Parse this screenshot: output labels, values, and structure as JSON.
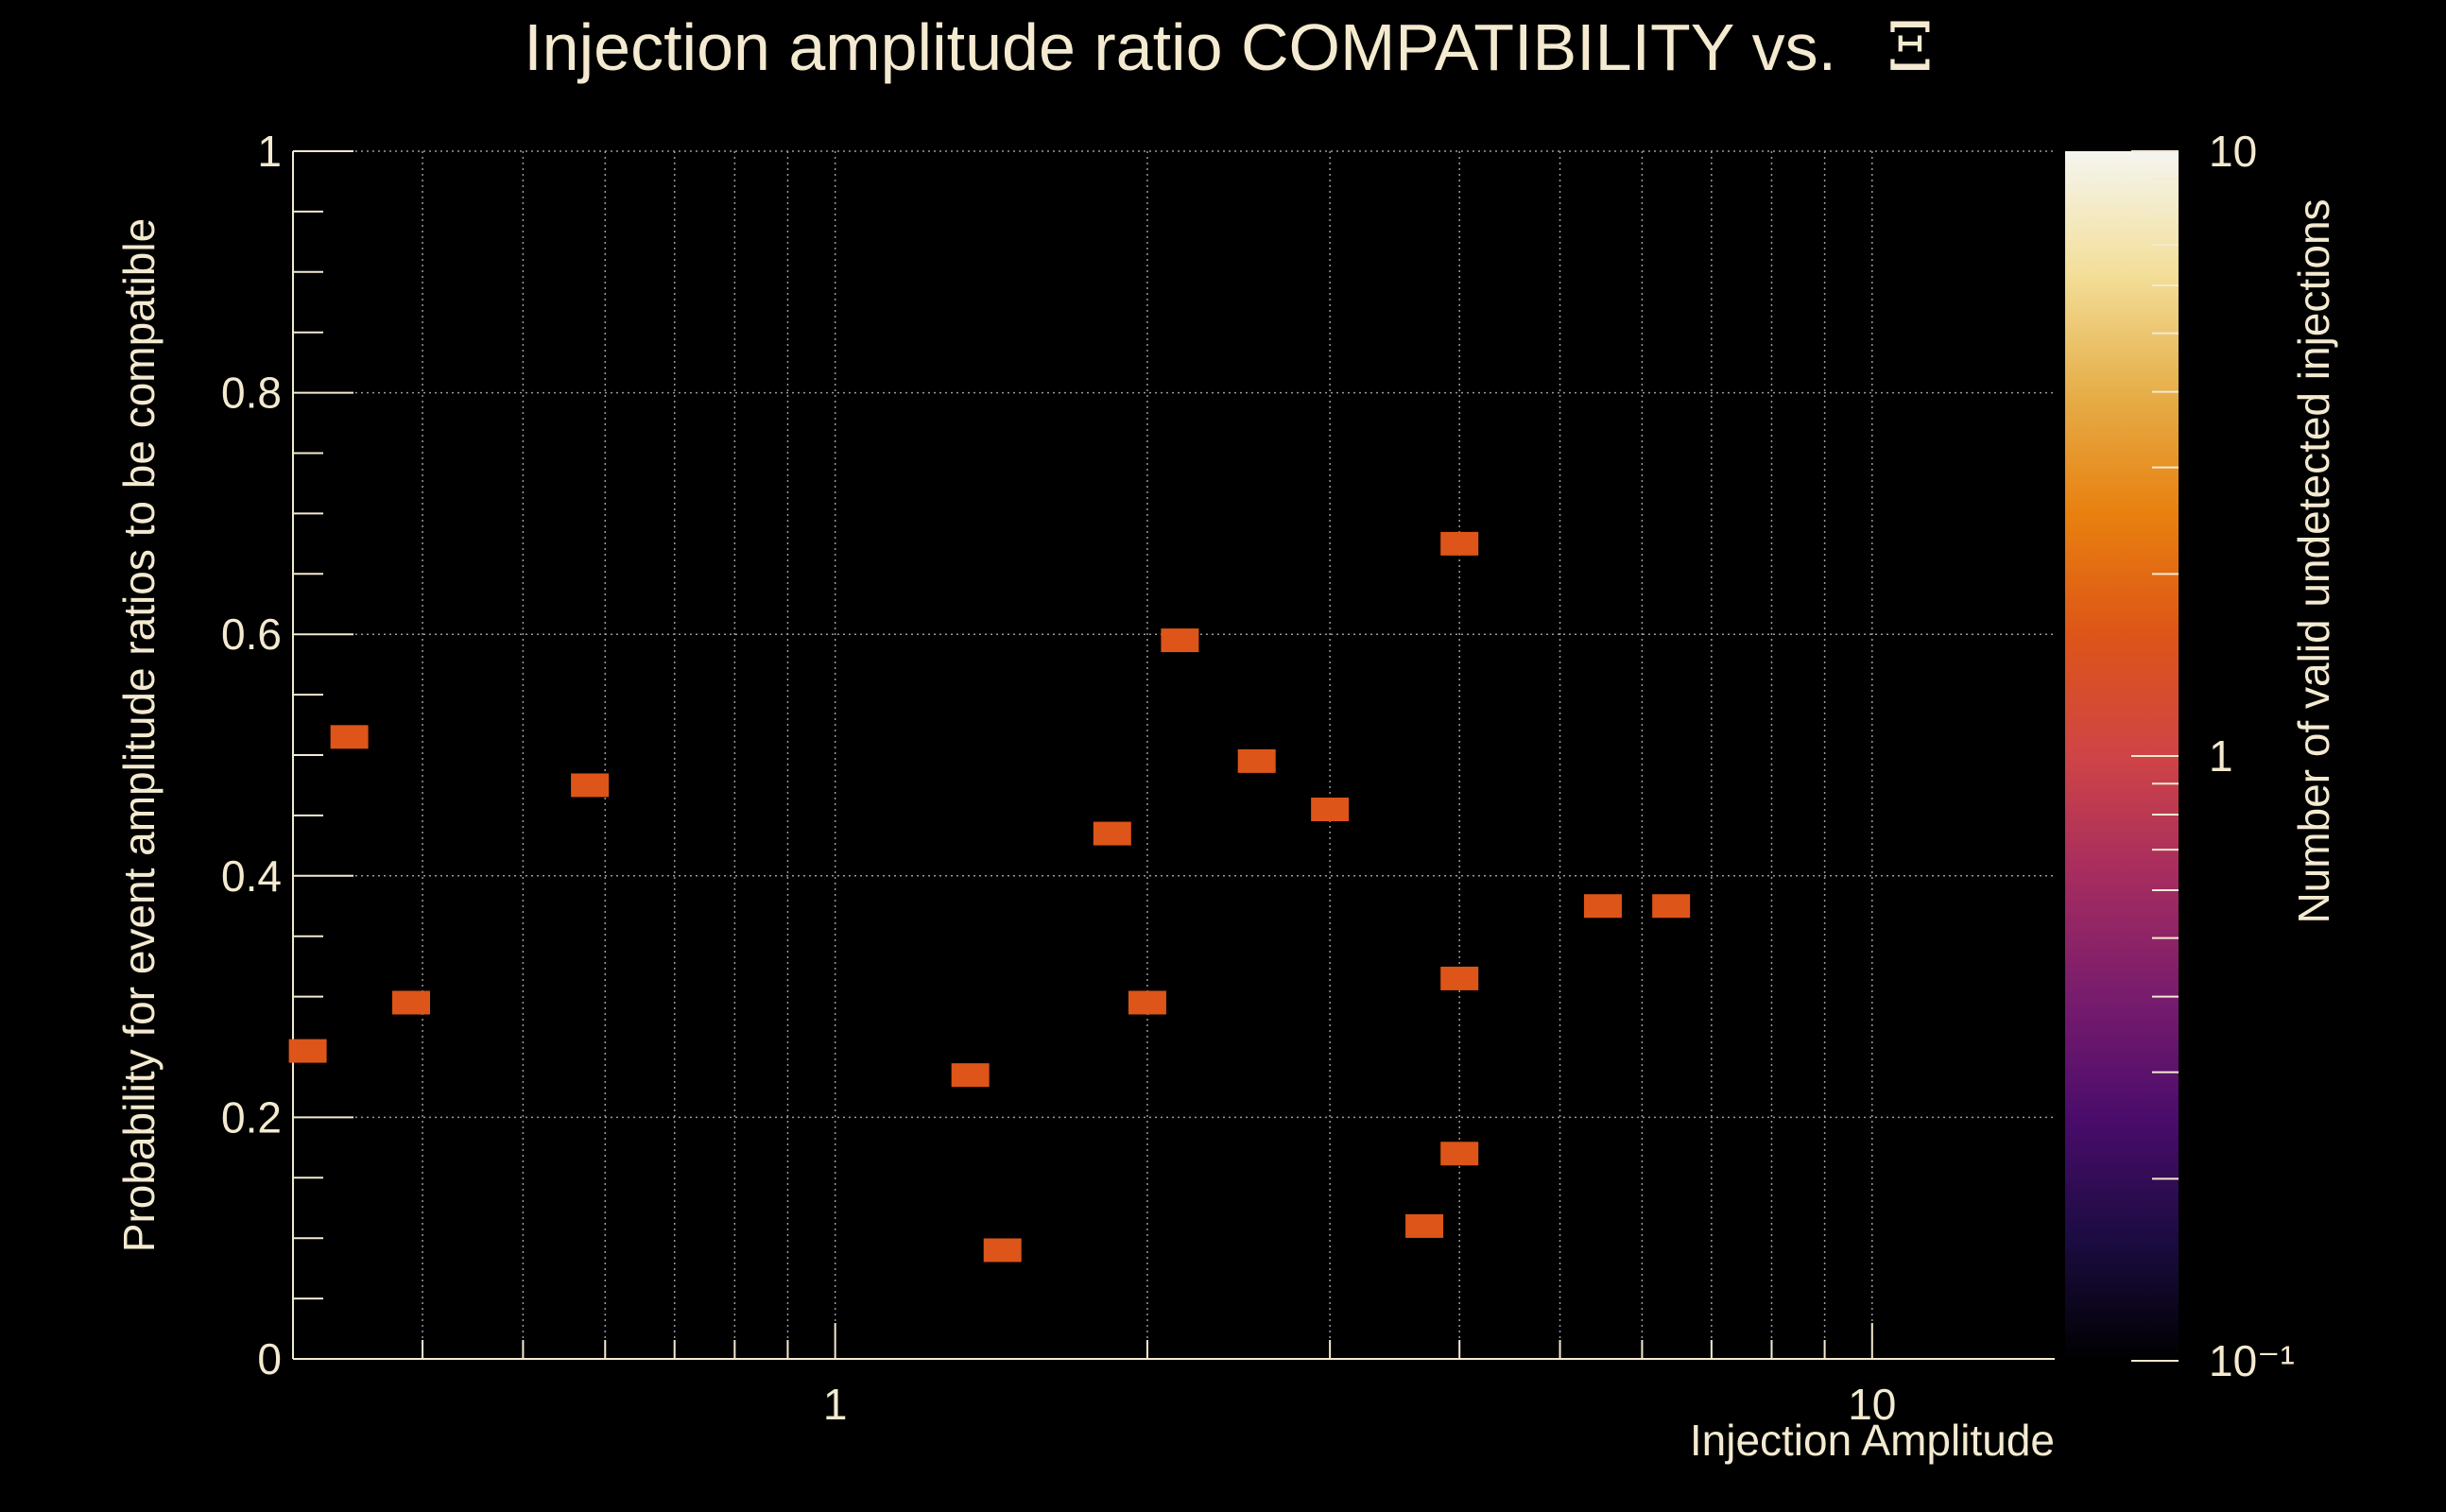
{
  "chart_data": {
    "type": "heatmap",
    "title": "Injection amplitude ratio COMPATIBILITY vs.",
    "title_symbol": "Ξ",
    "xlabel": "Injection Amplitude",
    "ylabel": "Probability for event amplitude ratios to be compatible",
    "zlabel": "Number of valid undetected injections",
    "x_scale": "log",
    "y_scale": "linear",
    "z_scale": "log",
    "xlim": [
      0.3,
      15
    ],
    "ylim": [
      0,
      1
    ],
    "zlim": [
      0.1,
      10
    ],
    "x_ticks": [
      "1",
      "10"
    ],
    "y_ticks": [
      "0",
      "0.2",
      "0.4",
      "0.6",
      "0.8",
      "1"
    ],
    "z_ticks": [
      "10",
      "1",
      "10⁻¹"
    ],
    "grid": true,
    "colormap_colors": [
      "#000000",
      "#1b0c41",
      "#4a0c6b",
      "#781c6d",
      "#a52c60",
      "#cf4446",
      "#dd5518",
      "#e8800f",
      "#e6ae49",
      "#f3df9a",
      "#f5f5f0"
    ],
    "bin_color": "#dd5518",
    "points": [
      {
        "x": 0.31,
        "y": 0.255,
        "z": 1
      },
      {
        "x": 0.34,
        "y": 0.515,
        "z": 1
      },
      {
        "x": 0.39,
        "y": 0.295,
        "z": 1
      },
      {
        "x": 0.58,
        "y": 0.475,
        "z": 1
      },
      {
        "x": 1.35,
        "y": 0.235,
        "z": 1
      },
      {
        "x": 1.45,
        "y": 0.09,
        "z": 1
      },
      {
        "x": 1.85,
        "y": 0.435,
        "z": 1
      },
      {
        "x": 2.0,
        "y": 0.295,
        "z": 1
      },
      {
        "x": 2.15,
        "y": 0.595,
        "z": 1
      },
      {
        "x": 2.55,
        "y": 0.495,
        "z": 1
      },
      {
        "x": 3.0,
        "y": 0.455,
        "z": 1
      },
      {
        "x": 3.7,
        "y": 0.11,
        "z": 1
      },
      {
        "x": 4.0,
        "y": 0.675,
        "z": 1
      },
      {
        "x": 4.0,
        "y": 0.315,
        "z": 1
      },
      {
        "x": 4.0,
        "y": 0.17,
        "z": 1
      },
      {
        "x": 5.5,
        "y": 0.375,
        "z": 1
      },
      {
        "x": 6.4,
        "y": 0.375,
        "z": 1
      }
    ]
  }
}
